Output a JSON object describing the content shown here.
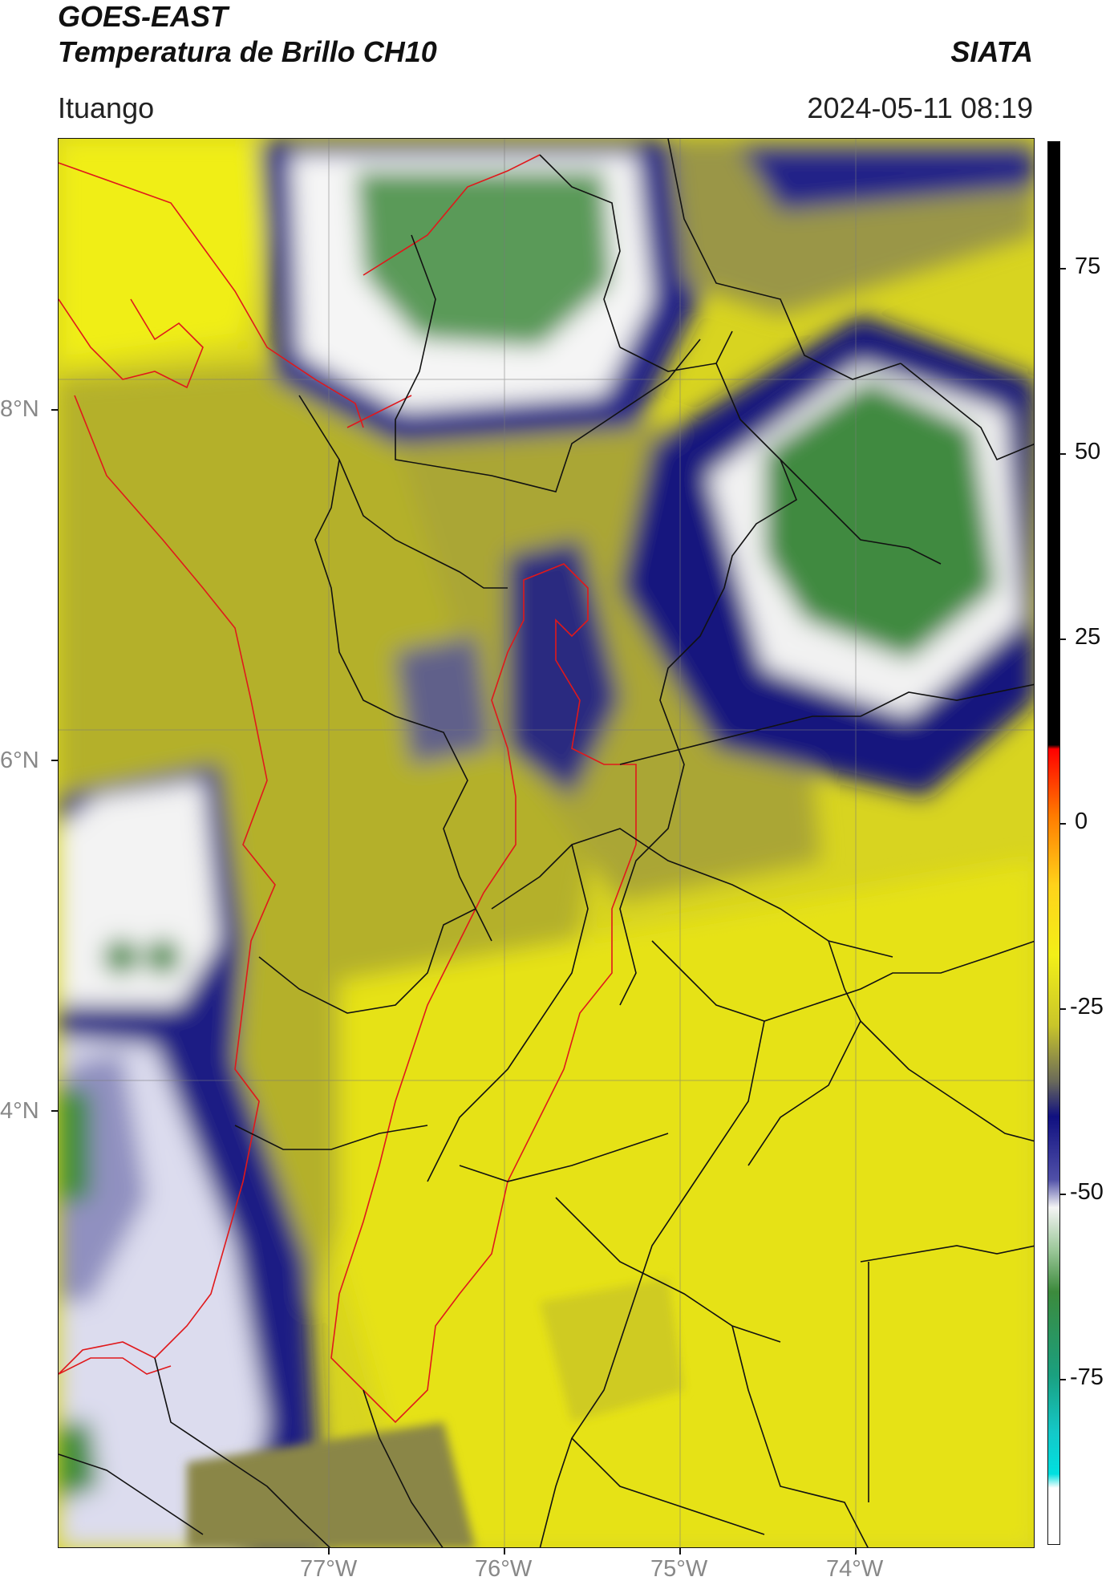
{
  "header": {
    "satellite": "GOES-EAST",
    "product": "Temperatura de Brillo CH10",
    "agency": "SIATA",
    "location": "Ituango",
    "datetime": "2024-05-11 08:19"
  },
  "map": {
    "lat_ticks": [
      {
        "label": "8°N",
        "lat": 8
      },
      {
        "label": "6°N",
        "lat": 6
      },
      {
        "label": "4°N",
        "lat": 4
      }
    ],
    "lon_ticks": [
      {
        "label": "77°W",
        "lon": -77
      },
      {
        "label": "76°W",
        "lon": -76
      },
      {
        "label": "75°W",
        "lon": -75
      },
      {
        "label": "74°W",
        "lon": -74
      }
    ],
    "extent": {
      "lon_min": -78.55,
      "lon_max": -73.0,
      "lat_min": 1.45,
      "lat_max": 9.55
    }
  },
  "colorbar": {
    "ticks": [
      "75",
      "50",
      "25",
      "0",
      "-25",
      "-50",
      "-75"
    ],
    "range": [
      -95,
      95
    ],
    "unit_hint": "°C"
  },
  "colors": {
    "warm_yellow": "#ecea18",
    "olive": "#b9b52a",
    "navy": "#12127a",
    "cloud_white": "#f4f4f4",
    "cold_green": "#3a8a3a",
    "border_black": "#111111",
    "border_red": "#e0181b"
  }
}
